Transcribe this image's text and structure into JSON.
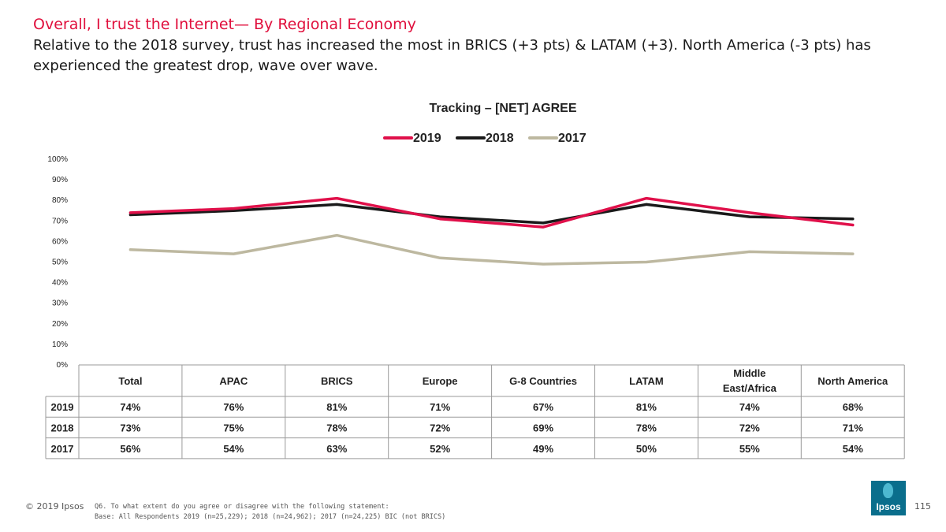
{
  "header": {
    "title": "Overall, I trust the Internet— By Regional Economy",
    "subtitle": "Relative to the 2018 survey, trust has increased the most in BRICS (+3 pts) & LATAM (+3). North America (-3 pts) has experienced the greatest drop, wave over wave."
  },
  "chart_data": {
    "type": "line",
    "title": "Tracking – [NET] AGREE",
    "categories": [
      "Total",
      "APAC",
      "BRICS",
      "Europe",
      "G-8 Countries",
      "LATAM",
      "Middle East/Africa",
      "North America"
    ],
    "category_lines": [
      [
        "Total"
      ],
      [
        "APAC"
      ],
      [
        "BRICS"
      ],
      [
        "Europe"
      ],
      [
        "G-8 Countries"
      ],
      [
        "LATAM"
      ],
      [
        "Middle",
        "East/Africa"
      ],
      [
        "North America"
      ]
    ],
    "series": [
      {
        "name": "2019",
        "color": "#e0104a",
        "values": [
          74,
          76,
          81,
          71,
          67,
          81,
          74,
          68
        ],
        "labels": [
          "74%",
          "76%",
          "81%",
          "71%",
          "67%",
          "81%",
          "74%",
          "68%"
        ]
      },
      {
        "name": "2018",
        "color": "#1a1a1a",
        "values": [
          73,
          75,
          78,
          72,
          69,
          78,
          72,
          71
        ],
        "labels": [
          "73%",
          "75%",
          "78%",
          "72%",
          "69%",
          "78%",
          "72%",
          "71%"
        ]
      },
      {
        "name": "2017",
        "color": "#bdb8a0",
        "values": [
          56,
          54,
          63,
          52,
          49,
          50,
          55,
          54
        ],
        "labels": [
          "56%",
          "54%",
          "63%",
          "52%",
          "49%",
          "50%",
          "55%",
          "54%"
        ]
      }
    ],
    "ylim": [
      0,
      100
    ],
    "yticks": [
      "0%",
      "10%",
      "20%",
      "30%",
      "40%",
      "50%",
      "60%",
      "70%",
      "80%",
      "90%",
      "100%"
    ],
    "legend_position": "top-center",
    "grid": false
  },
  "footer": {
    "copyright": "© 2019 Ipsos",
    "question": "Q6.  To what extent do you agree or disagree with the following statement:",
    "base": "Base: All Respondents 2019 (n=25,229);  2018 (n=24,962); 2017 (n=24,225) BIC (not BRICS)",
    "page_number": "115",
    "logo_text": "Ipsos"
  }
}
